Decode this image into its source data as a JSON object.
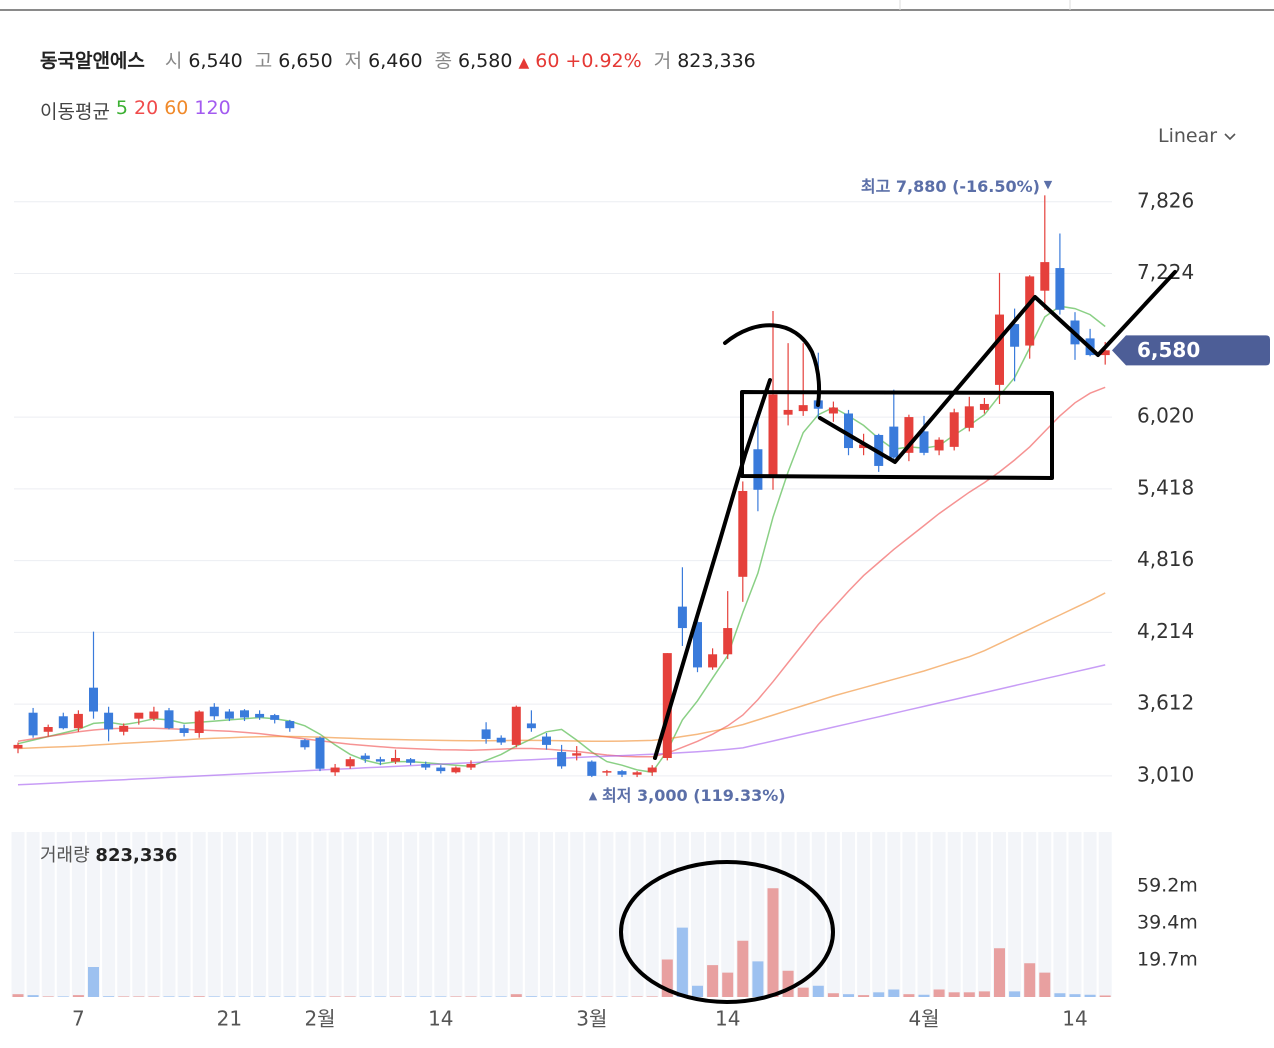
{
  "header": {
    "name": "동국알앤에스",
    "open_label": "시",
    "open": "6,540",
    "high_label": "고",
    "high": "6,650",
    "low_label": "저",
    "low": "6,460",
    "close_label": "종",
    "close": "6,580",
    "change_arrow": "▲",
    "change": "60",
    "change_pct": "+0.92%",
    "volume_label": "거",
    "volume": "823,336"
  },
  "scale_mode": "Linear",
  "chart_data": {
    "type": "candlestick",
    "categories": [
      null,
      null,
      null,
      null,
      "7",
      null,
      null,
      null,
      null,
      null,
      null,
      null,
      null,
      null,
      "21",
      null,
      null,
      null,
      null,
      null,
      "2월",
      null,
      null,
      null,
      null,
      null,
      null,
      null,
      "14",
      null,
      null,
      null,
      null,
      null,
      null,
      null,
      null,
      null,
      "3월",
      null,
      null,
      null,
      null,
      null,
      null,
      null,
      null,
      "14",
      null,
      null,
      null,
      null,
      null,
      null,
      null,
      null,
      null,
      null,
      null,
      null,
      "4월",
      null,
      null,
      null,
      null,
      null,
      null,
      null,
      null,
      null,
      "14",
      null,
      null
    ],
    "open": [
      3240,
      3540,
      3380,
      3510,
      3410,
      3750,
      3540,
      3380,
      3490,
      3490,
      3560,
      3410,
      3370,
      3590,
      3550,
      3560,
      3530,
      3520,
      3470,
      3310,
      3330,
      3040,
      3090,
      3180,
      3150,
      3130,
      3150,
      3110,
      3080,
      3040,
      3080,
      3400,
      3330,
      3270,
      3450,
      3340,
      3210,
      3180,
      3130,
      3040,
      3050,
      3020,
      3040,
      3160,
      4430,
      4300,
      3920,
      4030,
      4680,
      5750,
      5520,
      6040,
      6070,
      6160,
      6050,
      6050,
      5760,
      5870,
      5940,
      5720,
      5900,
      5740,
      5770,
      5930,
      6080,
      6290,
      6800,
      6620,
      7080,
      7270,
      6830,
      6680,
      6540
    ],
    "high": [
      3290,
      3580,
      3440,
      3540,
      3560,
      4220,
      3590,
      3450,
      3530,
      3590,
      3580,
      3440,
      3560,
      3620,
      3570,
      3570,
      3560,
      3530,
      3480,
      3320,
      3340,
      3110,
      3170,
      3200,
      3170,
      3230,
      3160,
      3130,
      3100,
      3090,
      3140,
      3460,
      3350,
      3600,
      3560,
      3370,
      3270,
      3260,
      3140,
      3060,
      3060,
      3050,
      3100,
      4040,
      4760,
      4380,
      4080,
      4560,
      5480,
      6070,
      6910,
      6640,
      6640,
      6560,
      6150,
      6080,
      5880,
      5880,
      6250,
      6040,
      6030,
      5850,
      6090,
      6190,
      6180,
      7230,
      6930,
      7210,
      7880,
      7560,
      6900,
      6760,
      6650
    ],
    "low": [
      3200,
      3330,
      3340,
      3400,
      3380,
      3490,
      3300,
      3350,
      3440,
      3470,
      3400,
      3340,
      3330,
      3480,
      3470,
      3470,
      3480,
      3450,
      3380,
      3230,
      3050,
      3010,
      3070,
      3120,
      3100,
      3110,
      3100,
      3060,
      3030,
      3030,
      3060,
      3280,
      3270,
      3250,
      3380,
      3230,
      3070,
      3140,
      3000,
      3010,
      3000,
      3000,
      3010,
      3140,
      4100,
      3880,
      3900,
      3990,
      4470,
      5230,
      5410,
      5950,
      6030,
      6010,
      5980,
      5700,
      5700,
      5560,
      5650,
      5650,
      5700,
      5700,
      5740,
      5900,
      6050,
      6130,
      6320,
      6510,
      6920,
      6880,
      6500,
      6530,
      6460
    ],
    "close": [
      3270,
      3350,
      3420,
      3410,
      3530,
      3550,
      3400,
      3430,
      3540,
      3550,
      3410,
      3370,
      3550,
      3510,
      3490,
      3500,
      3500,
      3480,
      3410,
      3250,
      3070,
      3080,
      3150,
      3150,
      3130,
      3160,
      3120,
      3080,
      3050,
      3080,
      3110,
      3320,
      3290,
      3590,
      3410,
      3270,
      3090,
      3200,
      3010,
      3050,
      3020,
      3040,
      3080,
      4040,
      4250,
      3920,
      4030,
      4250,
      5400,
      5410,
      6210,
      6080,
      6120,
      6090,
      6100,
      5760,
      5790,
      5610,
      5680,
      6020,
      5720,
      5830,
      6060,
      6110,
      6130,
      6880,
      6610,
      7200,
      7320,
      6920,
      6630,
      6540,
      6580
    ],
    "up_color": "#e5403b",
    "down_color": "#3a7bdb",
    "ylim": [
      2900,
      7950
    ],
    "yticks": [
      {
        "value": 3010,
        "label": "3,010"
      },
      {
        "value": 3612,
        "label": "3,612"
      },
      {
        "value": 4214,
        "label": "4,214"
      },
      {
        "value": 4816,
        "label": "4,816"
      },
      {
        "value": 5418,
        "label": "5,418"
      },
      {
        "value": 6020,
        "label": "6,020"
      },
      {
        "value": 7224,
        "label": "7,224"
      },
      {
        "value": 7826,
        "label": "7,826"
      }
    ],
    "grid": true,
    "last_price": {
      "value": 6580,
      "label": "6,580"
    },
    "high_note": {
      "label": "최고",
      "text": "7,880 (-16.50%)",
      "arrow": "▼"
    },
    "low_note": {
      "arrow": "▲",
      "label": "최저",
      "text": "3,000 (119.33%)"
    },
    "ma_title": "이동평균",
    "moving_averages": [
      {
        "name": "5",
        "color": "#3cb033",
        "values": [
          3280,
          3310,
          3340,
          3370,
          3400,
          3450,
          3460,
          3440,
          3460,
          3490,
          3480,
          3450,
          3460,
          3470,
          3480,
          3490,
          3500,
          3490,
          3470,
          3430,
          3360,
          3270,
          3190,
          3140,
          3110,
          3130,
          3130,
          3120,
          3110,
          3100,
          3090,
          3140,
          3190,
          3260,
          3320,
          3380,
          3400,
          3310,
          3210,
          3130,
          3100,
          3060,
          3040,
          3220,
          3480,
          3640,
          3830,
          4020,
          4380,
          4710,
          5180,
          5560,
          5890,
          6040,
          6100,
          6030,
          5950,
          5840,
          5750,
          5770,
          5760,
          5780,
          5870,
          5950,
          6040,
          6200,
          6350,
          6600,
          6860,
          6950,
          6930,
          6880,
          6780
        ]
      },
      {
        "name": "20",
        "color": "#f04b4b",
        "values": [
          3300,
          3320,
          3340,
          3360,
          3380,
          3395,
          3405,
          3410,
          3410,
          3410,
          3405,
          3400,
          3395,
          3390,
          3385,
          3375,
          3365,
          3350,
          3335,
          3320,
          3305,
          3290,
          3275,
          3265,
          3255,
          3245,
          3240,
          3235,
          3230,
          3228,
          3225,
          3230,
          3235,
          3240,
          3240,
          3235,
          3225,
          3215,
          3200,
          3185,
          3175,
          3170,
          3170,
          3200,
          3250,
          3300,
          3360,
          3430,
          3520,
          3650,
          3800,
          3960,
          4120,
          4280,
          4420,
          4560,
          4690,
          4800,
          4910,
          5010,
          5110,
          5210,
          5300,
          5390,
          5470,
          5560,
          5660,
          5770,
          5900,
          6030,
          6140,
          6220,
          6270
        ]
      },
      {
        "name": "60",
        "color": "#f08a2b",
        "values": [
          3240,
          3245,
          3250,
          3255,
          3260,
          3268,
          3275,
          3283,
          3290,
          3298,
          3305,
          3312,
          3320,
          3325,
          3330,
          3335,
          3338,
          3340,
          3340,
          3338,
          3335,
          3330,
          3325,
          3320,
          3318,
          3315,
          3312,
          3310,
          3308,
          3306,
          3305,
          3305,
          3306,
          3308,
          3308,
          3307,
          3305,
          3303,
          3300,
          3300,
          3302,
          3305,
          3308,
          3320,
          3340,
          3360,
          3385,
          3410,
          3440,
          3480,
          3520,
          3560,
          3600,
          3640,
          3680,
          3715,
          3750,
          3785,
          3820,
          3855,
          3890,
          3930,
          3970,
          4010,
          4060,
          4120,
          4180,
          4240,
          4300,
          4360,
          4420,
          4480,
          4545
        ]
      },
      {
        "name": "120",
        "color": "#a35bf0",
        "values": [
          2935,
          2941,
          2947,
          2954,
          2960,
          2966,
          2972,
          2978,
          2985,
          2991,
          2997,
          3003,
          3009,
          3016,
          3022,
          3028,
          3034,
          3040,
          3047,
          3053,
          3059,
          3065,
          3071,
          3078,
          3084,
          3090,
          3096,
          3102,
          3109,
          3115,
          3121,
          3127,
          3133,
          3140,
          3146,
          3152,
          3158,
          3164,
          3170,
          3175,
          3180,
          3186,
          3192,
          3198,
          3205,
          3213,
          3222,
          3232,
          3245,
          3274,
          3303,
          3332,
          3361,
          3390,
          3419,
          3448,
          3477,
          3506,
          3535,
          3564,
          3593,
          3622,
          3651,
          3680,
          3709,
          3738,
          3767,
          3796,
          3825,
          3854,
          3883,
          3912,
          3941
        ]
      }
    ],
    "volume": {
      "title": "거래량",
      "total": "823,336",
      "values": [
        1.5,
        1.0,
        0.3,
        0.3,
        1.0,
        16,
        0.4,
        0.3,
        0.3,
        0.3,
        0.3,
        0.3,
        0.4,
        0.3,
        0.3,
        0.3,
        0.3,
        0.3,
        0.3,
        0.3,
        0.3,
        0.3,
        0.3,
        0.3,
        0.3,
        0.3,
        0.3,
        0.3,
        0.3,
        0.3,
        0.3,
        0.3,
        0.3,
        1.5,
        0.4,
        0.3,
        0.3,
        0.3,
        0.3,
        0.3,
        0.3,
        0.3,
        0.3,
        20,
        37,
        6,
        17,
        13,
        30,
        19,
        58,
        14,
        5,
        6,
        2,
        1.5,
        1.0,
        2.5,
        4,
        1.5,
        1.2,
        4,
        2.5,
        2.5,
        3,
        26,
        3,
        18,
        13,
        2,
        1.5,
        1.2,
        0.8
      ],
      "up_color": "#e8a0a0",
      "down_color": "#9dc1f0",
      "ylim": [
        0,
        88
      ],
      "yticks": [
        {
          "value": 19.7,
          "label": "19.7m"
        },
        {
          "value": 39.4,
          "label": "39.4m"
        },
        {
          "value": 59.2,
          "label": "59.2m"
        }
      ]
    }
  }
}
